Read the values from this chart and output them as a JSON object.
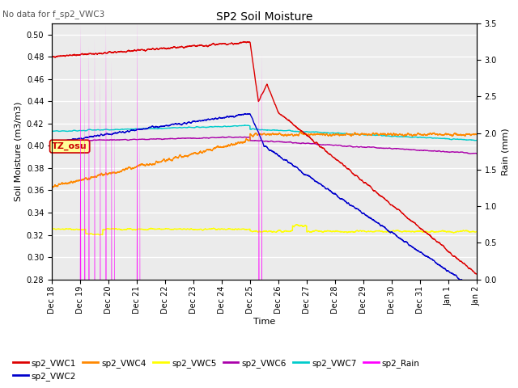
{
  "title": "SP2 Soil Moisture",
  "subtitle": "No data for f_sp2_VWC3",
  "ylabel_left": "Soil Moisture (m3/m3)",
  "ylabel_right": "Rain (mm)",
  "xlabel": "Time",
  "ylim_left": [
    0.28,
    0.51
  ],
  "ylim_right": [
    0.0,
    3.5
  ],
  "yticks_left": [
    0.28,
    0.3,
    0.32,
    0.34,
    0.36,
    0.38,
    0.4,
    0.42,
    0.44,
    0.46,
    0.48,
    0.5
  ],
  "yticks_right": [
    0.0,
    0.5,
    1.0,
    1.5,
    2.0,
    2.5,
    3.0,
    3.5
  ],
  "xtick_labels": [
    "Dec 18",
    "Dec 19",
    "Dec 20",
    "Dec 21",
    "Dec 22",
    "Dec 23",
    "Dec 24",
    "Dec 25",
    "Dec 26",
    "Dec 27",
    "Dec 28",
    "Dec 29",
    "Dec 30",
    "Dec 31",
    "Jan 1",
    "Jan 2"
  ],
  "tz_label": "TZ_osu",
  "colors": {
    "sp2_VWC1": "#dd0000",
    "sp2_VWC2": "#0000cc",
    "sp2_VWC4": "#ff8800",
    "sp2_VWC5": "#ffff00",
    "sp2_VWC6": "#aa00aa",
    "sp2_VWC7": "#00cccc",
    "sp2_Rain": "#ff00ff"
  },
  "background_color": "#ebebeb",
  "grid_color": "#ffffff"
}
